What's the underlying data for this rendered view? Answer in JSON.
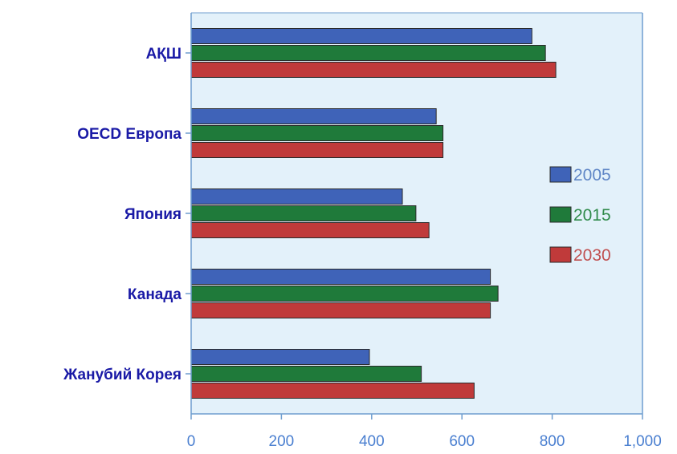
{
  "chart_data": {
    "type": "bar",
    "orientation": "horizontal",
    "categories": [
      "АҚШ",
      "OECD Европа",
      "Япония",
      "Канада",
      "Жанубий Корея"
    ],
    "series": [
      {
        "name": "2005",
        "values": [
          755,
          543,
          468,
          663,
          395
        ]
      },
      {
        "name": "2015",
        "values": [
          785,
          558,
          498,
          680,
          510
        ]
      },
      {
        "name": "2030",
        "values": [
          808,
          558,
          527,
          663,
          627
        ]
      }
    ],
    "xlim": [
      0,
      1000
    ],
    "x_ticks": [
      "0",
      "200",
      "400",
      "600",
      "800",
      "1,000"
    ],
    "grid": false,
    "legend_position": "right",
    "colors": {
      "2005": "#3f63b8",
      "2015": "#1f7a3a",
      "2030": "#c03a3a",
      "plot_background": "#e3f1fa",
      "axis": "#6f9ecf",
      "category_text": "#1a1aa6",
      "tick_text": "#4a7fd0",
      "legend_text_2005": "#5f86c6",
      "legend_text_2015": "#2f8a4a",
      "legend_text_2030": "#c05050"
    }
  }
}
